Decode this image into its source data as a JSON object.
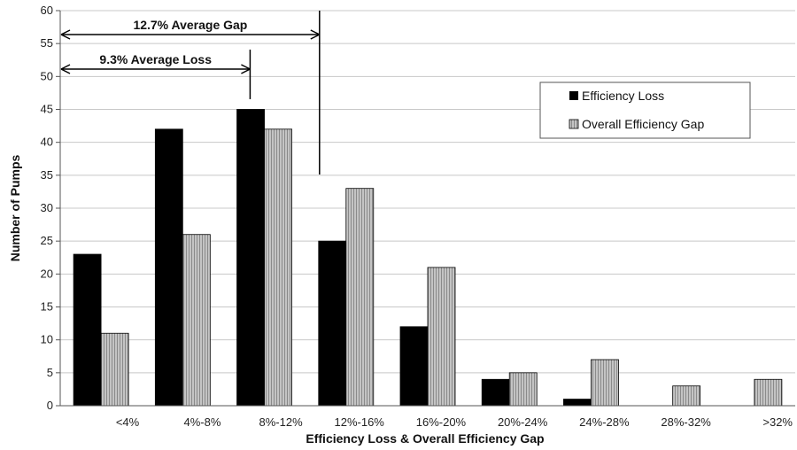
{
  "chart_data": {
    "type": "bar",
    "categories": [
      "<4%",
      "4%-8%",
      "8%-12%",
      "12%-16%",
      "16%-20%",
      "20%-24%",
      "24%-28%",
      "28%-32%",
      ">32%"
    ],
    "series": [
      {
        "name": "Efficiency Loss",
        "values": [
          23,
          42,
          45,
          25,
          12,
          4,
          1,
          0,
          0
        ],
        "color": "#000000",
        "pattern": "solid"
      },
      {
        "name": "Overall Efficiency Gap",
        "values": [
          11,
          26,
          42,
          33,
          21,
          5,
          7,
          3,
          4
        ],
        "color": "#b8b8b8",
        "pattern": "vertical-stripes"
      }
    ],
    "title": "",
    "xlabel": "Efficiency Loss & Overall Efficiency Gap",
    "ylabel": "Number of Pumps",
    "ylim": [
      0,
      60
    ],
    "yticks": [
      "0",
      "5",
      "10",
      "15",
      "20",
      "25",
      "30",
      "35",
      "40",
      "45",
      "50",
      "55",
      "60"
    ],
    "grid": true,
    "legend_position": "top-right",
    "annotations": [
      {
        "text": "12.7% Average Gap",
        "value": 12.7
      },
      {
        "text": "9.3% Average Loss",
        "value": 9.3
      }
    ]
  }
}
